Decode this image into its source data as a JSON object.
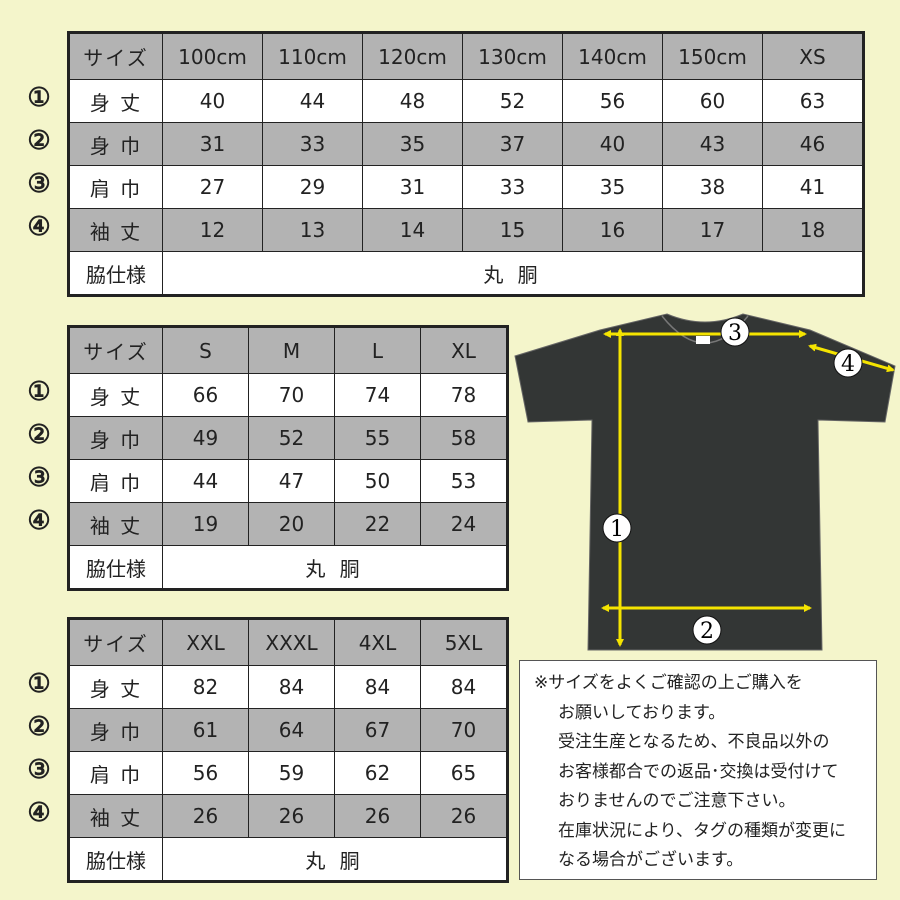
{
  "row_markers": [
    "①",
    "②",
    "③",
    "④"
  ],
  "tables": [
    {
      "header_label": "サイズ",
      "sizes": [
        "100cm",
        "110cm",
        "120cm",
        "130cm",
        "140cm",
        "150cm",
        "XS"
      ],
      "rows": [
        {
          "label": "身 丈",
          "values": [
            "40",
            "44",
            "48",
            "52",
            "56",
            "60",
            "63"
          ]
        },
        {
          "label": "身 巾",
          "values": [
            "31",
            "33",
            "35",
            "37",
            "40",
            "43",
            "46"
          ]
        },
        {
          "label": "肩 巾",
          "values": [
            "27",
            "29",
            "31",
            "33",
            "35",
            "38",
            "41"
          ]
        },
        {
          "label": "袖 丈",
          "values": [
            "12",
            "13",
            "14",
            "15",
            "16",
            "17",
            "18"
          ]
        }
      ],
      "side_label": "脇仕様",
      "side_value": "丸 胴"
    },
    {
      "header_label": "サイズ",
      "sizes": [
        "S",
        "M",
        "L",
        "XL"
      ],
      "rows": [
        {
          "label": "身 丈",
          "values": [
            "66",
            "70",
            "74",
            "78"
          ]
        },
        {
          "label": "身 巾",
          "values": [
            "49",
            "52",
            "55",
            "58"
          ]
        },
        {
          "label": "肩 巾",
          "values": [
            "44",
            "47",
            "50",
            "53"
          ]
        },
        {
          "label": "袖 丈",
          "values": [
            "19",
            "20",
            "22",
            "24"
          ]
        }
      ],
      "side_label": "脇仕様",
      "side_value": "丸 胴"
    },
    {
      "header_label": "サイズ",
      "sizes": [
        "XXL",
        "XXXL",
        "4XL",
        "5XL"
      ],
      "rows": [
        {
          "label": "身 丈",
          "values": [
            "82",
            "84",
            "84",
            "84"
          ]
        },
        {
          "label": "身 巾",
          "values": [
            "61",
            "64",
            "67",
            "70"
          ]
        },
        {
          "label": "肩 巾",
          "values": [
            "56",
            "59",
            "62",
            "65"
          ]
        },
        {
          "label": "袖 丈",
          "values": [
            "26",
            "26",
            "26",
            "26"
          ]
        }
      ],
      "side_label": "脇仕様",
      "side_value": "丸 胴"
    }
  ],
  "diagram": {
    "labels": [
      "1",
      "2",
      "3",
      "4"
    ],
    "shirt_color": "#333635",
    "arrow_color": "#f5e400"
  },
  "notice": {
    "lines": [
      "※サイズをよくご確認の上ご購入を",
      "お願いしております。",
      "受注生産となるため、不良品以外の",
      "お客様都合での返品･交換は受付けて",
      "おりませんのでご注意下さい。",
      "在庫状況により、タグの種類が変更に",
      "なる場合がございます。"
    ]
  },
  "colors": {
    "background": "#f4f5cb",
    "gray_cell": "#b3b3b3"
  }
}
